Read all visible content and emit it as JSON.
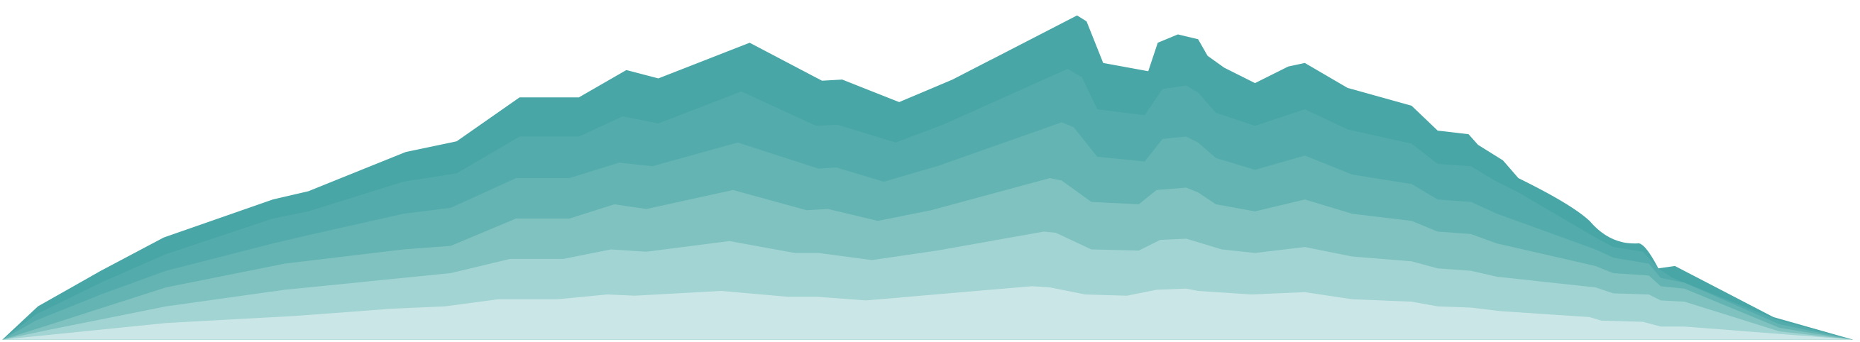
{
  "layers": [
    {
      "color": "#48a6a6"
    },
    {
      "color": "#53acab"
    },
    {
      "color": "#63b4b3"
    },
    {
      "color": "#7fc2c0"
    },
    {
      "color": "#a1d4d2"
    },
    {
      "color": "#cbe6e6"
    }
  ]
}
